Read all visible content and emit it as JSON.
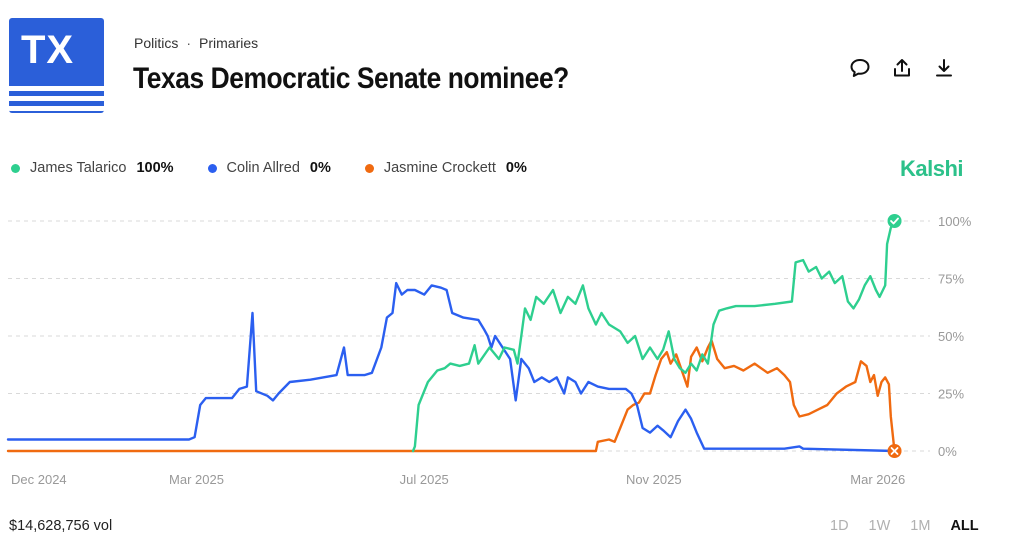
{
  "header": {
    "logo_text": "TX",
    "breadcrumb": [
      "Politics",
      "Primaries"
    ],
    "breadcrumb_sep": "·",
    "title": "Texas Democratic Senate nominee?"
  },
  "actions": [
    {
      "name": "comment-icon"
    },
    {
      "name": "share-icon"
    },
    {
      "name": "download-icon"
    }
  ],
  "brand": "Kalshi",
  "colors": {
    "talarico": "#2ecf8f",
    "allred": "#2b5ff0",
    "crockett": "#f06a10",
    "grid": "#d9d9d9",
    "axis_text": "#999999"
  },
  "legend": [
    {
      "name": "James Talarico",
      "value": "100%",
      "color": "#2ecf8f"
    },
    {
      "name": "Colin Allred",
      "value": "0%",
      "color": "#2b5ff0"
    },
    {
      "name": "Jasmine Crockett",
      "value": "0%",
      "color": "#f06a10"
    }
  ],
  "chart_data": {
    "type": "line",
    "x_axis": {
      "min": "2024-11-20",
      "max": "2026-03-29",
      "ticks": [
        {
          "date": "2024-12-01",
          "label": "Dec 2024"
        },
        {
          "date": "2025-03-01",
          "label": "Mar 2025"
        },
        {
          "date": "2025-07-01",
          "label": "Jul 2025"
        },
        {
          "date": "2025-11-01",
          "label": "Nov 2025"
        },
        {
          "date": "2026-03-01",
          "label": "Mar 2026"
        }
      ]
    },
    "y_axis": {
      "min": 0,
      "max": 100,
      "ticks": [
        {
          "value": 0,
          "label": "0%"
        },
        {
          "value": 25,
          "label": "25%"
        },
        {
          "value": 50,
          "label": "50%"
        },
        {
          "value": 75,
          "label": "75%"
        },
        {
          "value": 100,
          "label": "100%"
        }
      ],
      "grid": "dashed"
    },
    "series": [
      {
        "name": "James Talarico",
        "color": "#2ecf8f",
        "points": [
          [
            "2025-06-25",
            0
          ],
          [
            "2025-06-26",
            2
          ],
          [
            "2025-06-28",
            20
          ],
          [
            "2025-07-03",
            30
          ],
          [
            "2025-07-08",
            35
          ],
          [
            "2025-07-12",
            36
          ],
          [
            "2025-07-15",
            38
          ],
          [
            "2025-07-20",
            37
          ],
          [
            "2025-07-25",
            38
          ],
          [
            "2025-07-28",
            46
          ],
          [
            "2025-07-30",
            38
          ],
          [
            "2025-08-05",
            45
          ],
          [
            "2025-08-10",
            40
          ],
          [
            "2025-08-13",
            45
          ],
          [
            "2025-08-18",
            44
          ],
          [
            "2025-08-20",
            38
          ],
          [
            "2025-08-22",
            50
          ],
          [
            "2025-08-24",
            62
          ],
          [
            "2025-08-27",
            57
          ],
          [
            "2025-08-30",
            67
          ],
          [
            "2025-09-03",
            64
          ],
          [
            "2025-09-08",
            70
          ],
          [
            "2025-09-12",
            60
          ],
          [
            "2025-09-16",
            67
          ],
          [
            "2025-09-20",
            64
          ],
          [
            "2025-09-24",
            72
          ],
          [
            "2025-09-27",
            62
          ],
          [
            "2025-10-01",
            55
          ],
          [
            "2025-10-04",
            60
          ],
          [
            "2025-10-08",
            55
          ],
          [
            "2025-10-14",
            52
          ],
          [
            "2025-10-18",
            47
          ],
          [
            "2025-10-22",
            50
          ],
          [
            "2025-10-26",
            40
          ],
          [
            "2025-10-30",
            45
          ],
          [
            "2025-11-03",
            40
          ],
          [
            "2025-11-06",
            44
          ],
          [
            "2025-11-09",
            52
          ],
          [
            "2025-11-12",
            40
          ],
          [
            "2025-11-15",
            36
          ],
          [
            "2025-11-18",
            34
          ],
          [
            "2025-11-21",
            38
          ],
          [
            "2025-11-24",
            35
          ],
          [
            "2025-11-27",
            42
          ],
          [
            "2025-11-30",
            38
          ],
          [
            "2025-12-03",
            55
          ],
          [
            "2025-12-06",
            61
          ],
          [
            "2025-12-10",
            62
          ],
          [
            "2025-12-15",
            63
          ],
          [
            "2025-12-25",
            63
          ],
          [
            "2026-01-05",
            64
          ],
          [
            "2026-01-14",
            65
          ],
          [
            "2026-01-16",
            82
          ],
          [
            "2026-01-20",
            83
          ],
          [
            "2026-01-23",
            78
          ],
          [
            "2026-01-27",
            80
          ],
          [
            "2026-01-30",
            75
          ],
          [
            "2026-02-03",
            78
          ],
          [
            "2026-02-06",
            73
          ],
          [
            "2026-02-10",
            76
          ],
          [
            "2026-02-13",
            65
          ],
          [
            "2026-02-16",
            62
          ],
          [
            "2026-02-19",
            66
          ],
          [
            "2026-02-22",
            72
          ],
          [
            "2026-02-25",
            76
          ],
          [
            "2026-02-28",
            70
          ],
          [
            "2026-03-02",
            67
          ],
          [
            "2026-03-05",
            72
          ],
          [
            "2026-03-06",
            90
          ],
          [
            "2026-03-08",
            97
          ],
          [
            "2026-03-10",
            100
          ]
        ]
      },
      {
        "name": "Colin Allred",
        "color": "#2b5ff0",
        "points": [
          [
            "2024-11-20",
            5
          ],
          [
            "2025-02-25",
            5
          ],
          [
            "2025-02-28",
            6
          ],
          [
            "2025-03-03",
            20
          ],
          [
            "2025-03-06",
            23
          ],
          [
            "2025-03-20",
            23
          ],
          [
            "2025-03-24",
            27
          ],
          [
            "2025-03-28",
            28
          ],
          [
            "2025-03-31",
            60
          ],
          [
            "2025-04-02",
            26
          ],
          [
            "2025-04-08",
            24
          ],
          [
            "2025-04-11",
            22
          ],
          [
            "2025-04-14",
            25
          ],
          [
            "2025-04-20",
            30
          ],
          [
            "2025-05-01",
            31
          ],
          [
            "2025-05-15",
            33
          ],
          [
            "2025-05-19",
            45
          ],
          [
            "2025-05-21",
            33
          ],
          [
            "2025-05-30",
            33
          ],
          [
            "2025-06-03",
            34
          ],
          [
            "2025-06-08",
            45
          ],
          [
            "2025-06-11",
            58
          ],
          [
            "2025-06-14",
            60
          ],
          [
            "2025-06-16",
            73
          ],
          [
            "2025-06-19",
            68
          ],
          [
            "2025-06-22",
            70
          ],
          [
            "2025-06-26",
            70
          ],
          [
            "2025-07-01",
            68
          ],
          [
            "2025-07-05",
            72
          ],
          [
            "2025-07-10",
            71
          ],
          [
            "2025-07-13",
            70
          ],
          [
            "2025-07-16",
            60
          ],
          [
            "2025-07-22",
            58
          ],
          [
            "2025-07-30",
            57
          ],
          [
            "2025-08-02",
            53
          ],
          [
            "2025-08-04",
            50
          ],
          [
            "2025-08-06",
            45
          ],
          [
            "2025-08-08",
            50
          ],
          [
            "2025-08-12",
            45
          ],
          [
            "2025-08-16",
            40
          ],
          [
            "2025-08-19",
            22
          ],
          [
            "2025-08-22",
            40
          ],
          [
            "2025-08-26",
            36
          ],
          [
            "2025-08-29",
            30
          ],
          [
            "2025-09-02",
            32
          ],
          [
            "2025-09-06",
            30
          ],
          [
            "2025-09-10",
            32
          ],
          [
            "2025-09-14",
            25
          ],
          [
            "2025-09-16",
            32
          ],
          [
            "2025-09-20",
            30
          ],
          [
            "2025-09-23",
            25
          ],
          [
            "2025-09-27",
            30
          ],
          [
            "2025-10-02",
            28
          ],
          [
            "2025-10-08",
            27
          ],
          [
            "2025-10-14",
            27
          ],
          [
            "2025-10-17",
            27
          ],
          [
            "2025-10-20",
            25
          ],
          [
            "2025-10-23",
            20
          ],
          [
            "2025-10-26",
            10
          ],
          [
            "2025-10-30",
            8
          ],
          [
            "2025-11-03",
            11
          ],
          [
            "2025-11-06",
            9
          ],
          [
            "2025-11-10",
            6
          ],
          [
            "2025-11-14",
            13
          ],
          [
            "2025-11-18",
            18
          ],
          [
            "2025-11-21",
            14
          ],
          [
            "2025-11-24",
            8
          ],
          [
            "2025-11-28",
            1
          ],
          [
            "2025-12-10",
            1
          ],
          [
            "2026-01-10",
            1
          ],
          [
            "2026-01-18",
            2
          ],
          [
            "2026-01-20",
            1
          ],
          [
            "2026-03-10",
            0
          ]
        ]
      },
      {
        "name": "Jasmine Crockett",
        "color": "#f06a10",
        "points": [
          [
            "2024-11-20",
            0
          ],
          [
            "2025-10-01",
            0
          ],
          [
            "2025-10-02",
            4
          ],
          [
            "2025-10-08",
            5
          ],
          [
            "2025-10-11",
            4
          ],
          [
            "2025-10-14",
            10
          ],
          [
            "2025-10-18",
            18
          ],
          [
            "2025-10-21",
            20
          ],
          [
            "2025-10-24",
            21
          ],
          [
            "2025-10-27",
            25
          ],
          [
            "2025-10-30",
            25
          ],
          [
            "2025-11-02",
            33
          ],
          [
            "2025-11-05",
            40
          ],
          [
            "2025-11-08",
            43
          ],
          [
            "2025-11-10",
            38
          ],
          [
            "2025-11-13",
            42
          ],
          [
            "2025-11-16",
            35
          ],
          [
            "2025-11-19",
            28
          ],
          [
            "2025-11-21",
            41
          ],
          [
            "2025-11-24",
            45
          ],
          [
            "2025-11-27",
            39
          ],
          [
            "2025-11-30",
            45
          ],
          [
            "2025-12-02",
            48
          ],
          [
            "2025-12-05",
            40
          ],
          [
            "2025-12-09",
            36
          ],
          [
            "2025-12-14",
            37
          ],
          [
            "2025-12-19",
            35
          ],
          [
            "2025-12-25",
            38
          ],
          [
            "2026-01-01",
            34
          ],
          [
            "2026-01-06",
            36
          ],
          [
            "2026-01-10",
            33
          ],
          [
            "2026-01-13",
            30
          ],
          [
            "2026-01-15",
            20
          ],
          [
            "2026-01-18",
            15
          ],
          [
            "2026-01-23",
            16
          ],
          [
            "2026-01-28",
            18
          ],
          [
            "2026-02-02",
            20
          ],
          [
            "2026-02-07",
            25
          ],
          [
            "2026-02-12",
            28
          ],
          [
            "2026-02-17",
            30
          ],
          [
            "2026-02-20",
            39
          ],
          [
            "2026-02-23",
            37
          ],
          [
            "2026-02-25",
            30
          ],
          [
            "2026-02-27",
            33
          ],
          [
            "2026-03-01",
            24
          ],
          [
            "2026-03-03",
            30
          ],
          [
            "2026-03-05",
            32
          ],
          [
            "2026-03-07",
            29
          ],
          [
            "2026-03-08",
            15
          ],
          [
            "2026-03-10",
            0
          ]
        ]
      }
    ],
    "end_markers": [
      {
        "series": "James Talarico",
        "marker": "check-icon"
      },
      {
        "series": "Jasmine Crockett",
        "marker": "x-icon"
      }
    ]
  },
  "footer": {
    "volume": "$14,628,756 vol",
    "ranges": [
      "1D",
      "1W",
      "1M",
      "ALL"
    ],
    "active_range": "ALL"
  }
}
